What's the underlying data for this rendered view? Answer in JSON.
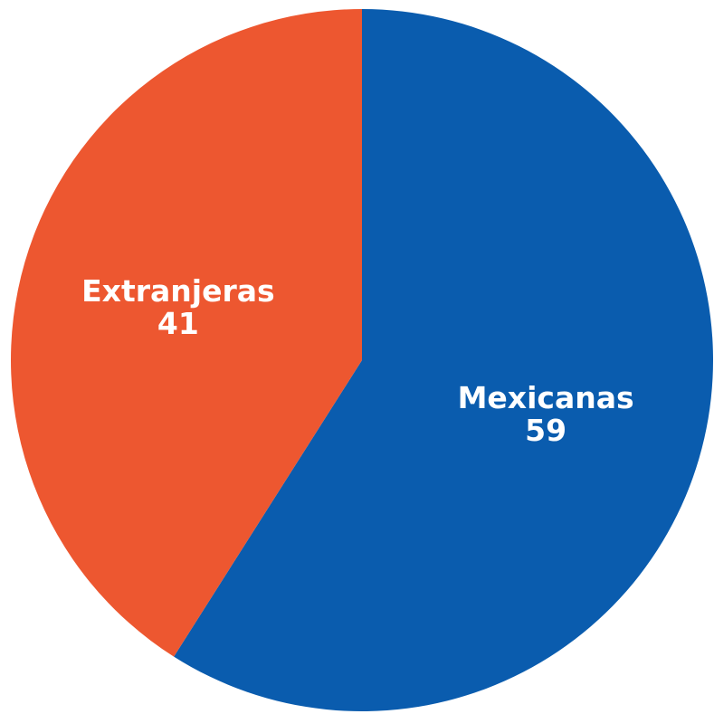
{
  "chart_data": {
    "type": "pie",
    "slices": [
      {
        "label": "Mexicanas",
        "value": 59,
        "value_label": "59",
        "color": "#0a5cae"
      },
      {
        "label": "Extranjeras",
        "value": 41,
        "value_label": "41",
        "color": "#ed5730"
      }
    ],
    "title": "",
    "legend": "none",
    "start_angle_deg": 0,
    "direction": "clockwise"
  }
}
